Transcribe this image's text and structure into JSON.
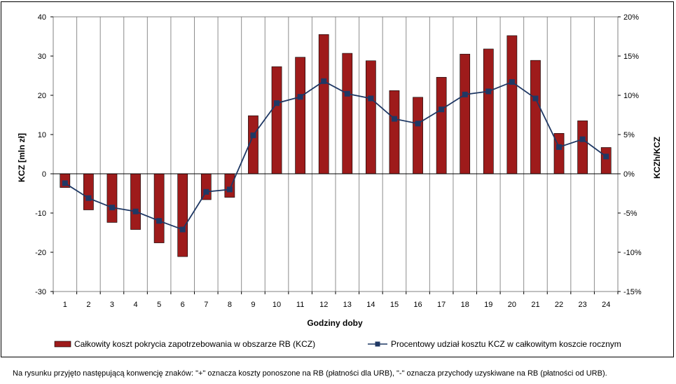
{
  "chart_data": {
    "type": "bar+line",
    "xlabel": "Godziny doby",
    "ylabel_left": "KCZ [mln zł]",
    "ylabel_right": "KCZh/KCZ",
    "categories": [
      "1",
      "2",
      "3",
      "4",
      "5",
      "6",
      "7",
      "8",
      "9",
      "10",
      "11",
      "12",
      "13",
      "14",
      "15",
      "16",
      "17",
      "18",
      "19",
      "20",
      "21",
      "22",
      "23",
      "24"
    ],
    "ylim_left": [
      -30,
      40
    ],
    "yticks_left": [
      -30,
      -20,
      -10,
      0,
      10,
      20,
      30,
      40
    ],
    "ytick_labels_left": [
      "-30",
      "-20",
      "-10",
      "0",
      "10",
      "20",
      "30",
      "40"
    ],
    "ylim_right": [
      -0.15,
      0.2
    ],
    "yticks_right": [
      -0.15,
      -0.1,
      -0.05,
      0,
      0.05,
      0.1,
      0.15,
      0.2
    ],
    "ytick_labels_right": [
      "-15%",
      "-10%",
      "-5%",
      "0%",
      "5%",
      "10%",
      "15%",
      "20%"
    ],
    "grid": "vertical",
    "legend_position": "bottom",
    "series": [
      {
        "name": "Całkowity koszt pokrycia zapotrzebowania w obszarze RB (KCZ)",
        "type": "bar",
        "axis": "left",
        "color": "#9e1b1b",
        "values": [
          -3.5,
          -9.2,
          -12.4,
          -14.2,
          -17.6,
          -21.1,
          -6.6,
          -6.0,
          14.8,
          27.3,
          29.7,
          35.5,
          30.7,
          28.8,
          21.2,
          19.5,
          24.6,
          30.5,
          31.8,
          35.2,
          28.9,
          10.3,
          13.5,
          6.7
        ]
      },
      {
        "name": "Procentowy udział kosztu KCZ w całkowitym koszcie rocznym",
        "type": "line",
        "axis": "right",
        "color": "#1f3864",
        "values": [
          -0.012,
          -0.031,
          -0.043,
          -0.048,
          -0.06,
          -0.071,
          -0.023,
          -0.02,
          0.049,
          0.09,
          0.098,
          0.118,
          0.102,
          0.096,
          0.07,
          0.064,
          0.082,
          0.101,
          0.105,
          0.117,
          0.096,
          0.034,
          0.044,
          0.022
        ]
      }
    ]
  },
  "footnote": "Na rysunku przyjęto następującą konwencję znaków: \"+\" oznacza koszty ponoszone na RB (płatności dla URB), \"-\" oznacza przychody uzyskiwane na RB (płatności od URB)."
}
